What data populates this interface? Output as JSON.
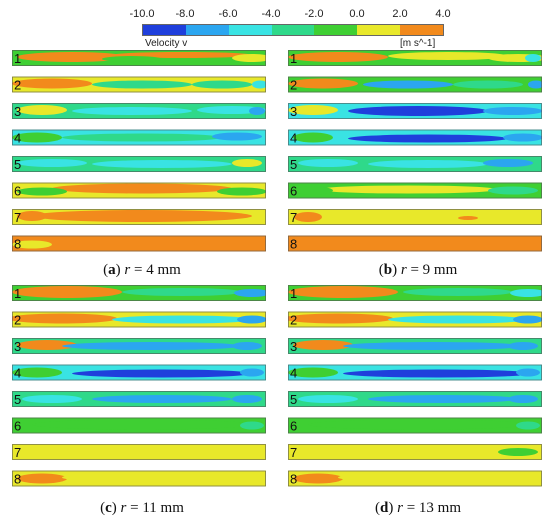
{
  "legend": {
    "title": "Velocity v",
    "unit": "[m s^-1]",
    "ticks": [
      "-10.0",
      "-8.0",
      "-6.0",
      "-4.0",
      "-2.0",
      "0.0",
      "2.0",
      "4.0"
    ],
    "colors": [
      "#1f3fdc",
      "#2ba6f0",
      "#39e3e3",
      "#2fd98a",
      "#3fcf33",
      "#e8e82a",
      "#f28a1c"
    ]
  },
  "panels": [
    {
      "letter": "a",
      "var": "r",
      "eq": " = ",
      "value": "4",
      "unit": " mm",
      "strips": [
        "1",
        "2",
        "3",
        "4",
        "5",
        "6",
        "7",
        "8"
      ]
    },
    {
      "letter": "b",
      "var": "r",
      "eq": " = ",
      "value": "9",
      "unit": " mm",
      "strips": [
        "1",
        "2",
        "3",
        "4",
        "5",
        "6",
        "7",
        "8"
      ]
    },
    {
      "letter": "c",
      "var": "r",
      "eq": " = ",
      "value": "11",
      "unit": " mm",
      "strips": [
        "1",
        "2",
        "3",
        "4",
        "5",
        "6",
        "7",
        "8"
      ]
    },
    {
      "letter": "d",
      "var": "r",
      "eq": " = ",
      "value": "13",
      "unit": " mm",
      "strips": [
        "1",
        "2",
        "3",
        "4",
        "5",
        "6",
        "7",
        "8"
      ]
    }
  ]
}
